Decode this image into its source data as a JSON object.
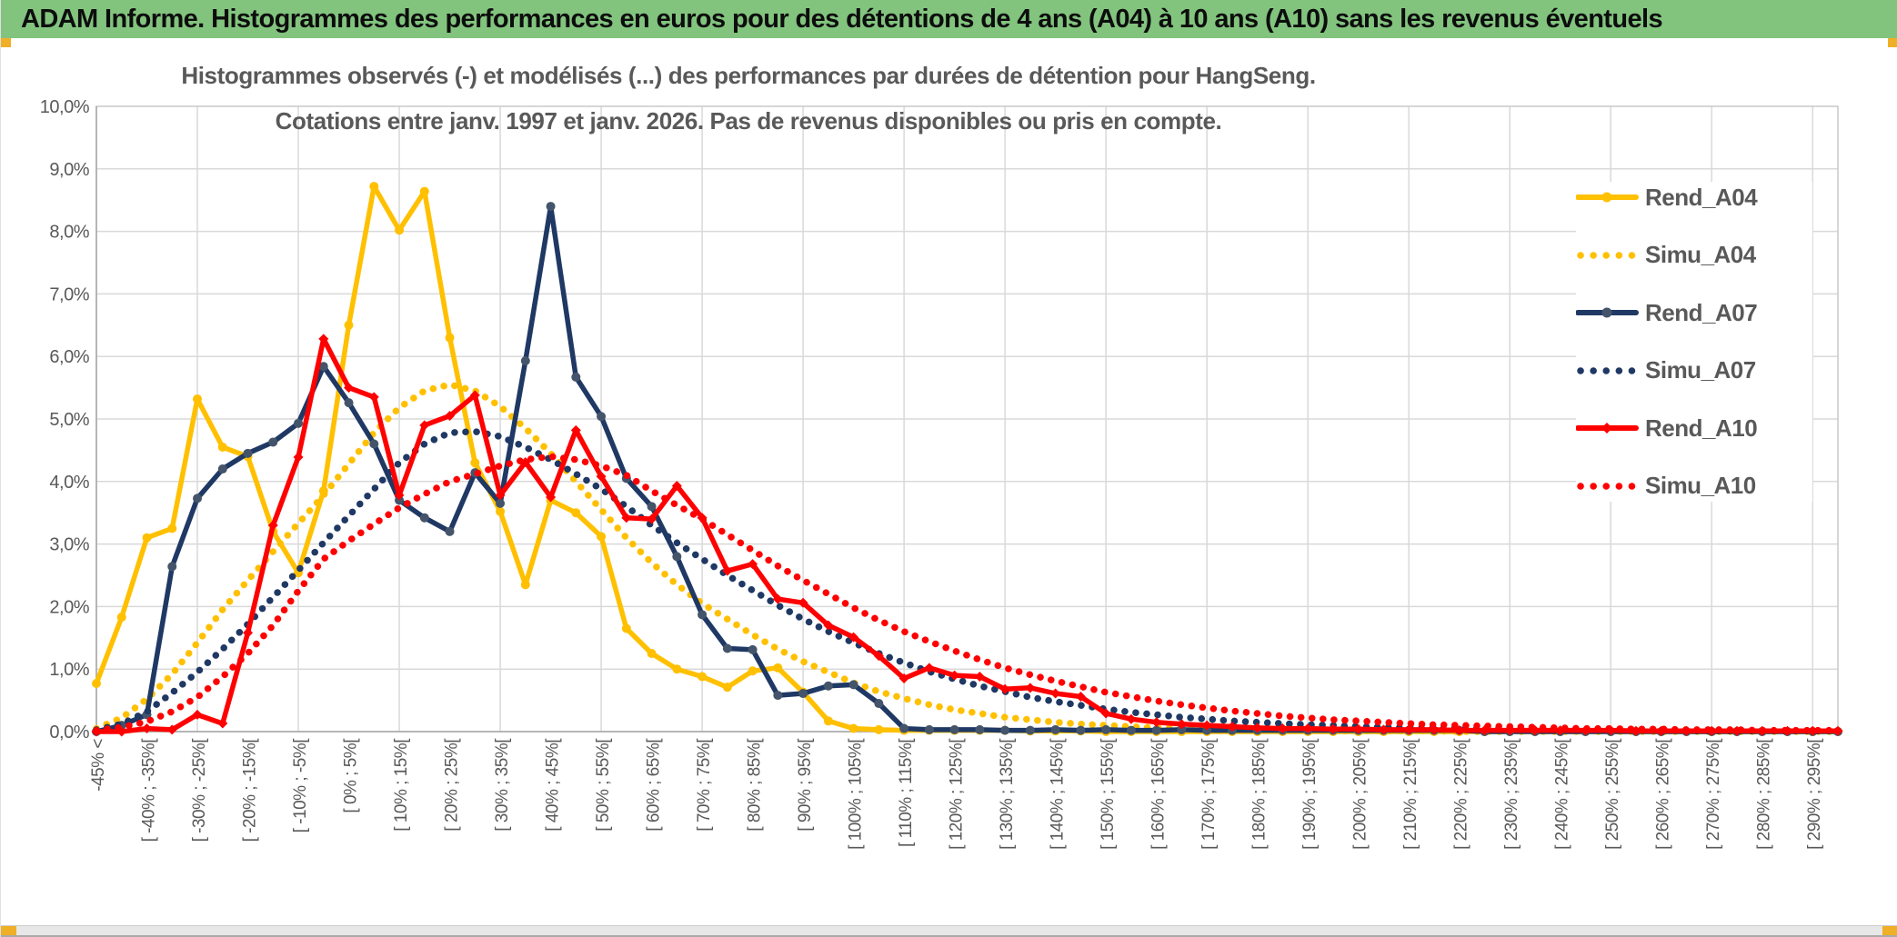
{
  "window": {
    "title": "ADAM Informe. Histogrammes des performances en euros pour des détentions de 4 ans (A04) à 10 ans (A10) sans les revenus éventuels"
  },
  "colors": {
    "titlebar_green": "#82c47e",
    "accent_gold": "#efaf26",
    "grid": "#d9d9d9",
    "axis": "#a6a6a6",
    "text_grey": "#595959",
    "series_yellow": "#FFC000",
    "series_navy": "#1F3864",
    "navy_marker": "#44546A",
    "series_red": "#FF0000"
  },
  "legend": {
    "entries": [
      {
        "label": "Rend_A04",
        "color": "#FFC000",
        "style": "solid",
        "marker": "circle",
        "marker_color": "#FFC000"
      },
      {
        "label": "Simu_A04",
        "color": "#FFC000",
        "style": "dotted"
      },
      {
        "label": "Rend_A07",
        "color": "#1F3864",
        "style": "solid",
        "marker": "circle",
        "marker_color": "#44546A"
      },
      {
        "label": "Simu_A07",
        "color": "#1F3864",
        "style": "dotted"
      },
      {
        "label": "Rend_A10",
        "color": "#FF0000",
        "style": "solid",
        "marker": "diamond",
        "marker_color": "#FF0000"
      },
      {
        "label": "Simu_A10",
        "color": "#FF0000",
        "style": "dotted"
      }
    ]
  },
  "chart_data": {
    "type": "line",
    "title_line1": "Histogrammes observés (-) et modélisés (...) des performances par durées de détention pour HangSeng.",
    "title_line2": "Cotations entre janv. 1997 et janv. 2026. Pas de revenus disponibles ou pris en compte.",
    "ylabel": "",
    "xlabel": "",
    "ylim": [
      0,
      10
    ],
    "y_tick_labels": [
      "10,0%",
      "9,0%",
      "8,0%",
      "7,0%",
      "6,0%",
      "5,0%",
      "4,0%",
      "3,0%",
      "2,0%",
      "1,0%",
      "0,0%"
    ],
    "x_count": 70,
    "x_label_every": 2,
    "x_tick_labels": [
      "-45% <",
      "[ -40% ; -35%[",
      "[ -30% ; -25%[",
      "[ -20% ; -15%[",
      "[ -10% ; -5%[",
      "[ 0% ; 5%[",
      "[ 10% ; 15%[",
      "[ 20% ; 25%[",
      "[ 30% ; 35%[",
      "[ 40% ; 45%[",
      "[ 50% ; 55%[",
      "[ 60% ; 65%[",
      "[ 70% ; 75%[",
      "[ 80% ; 85%[",
      "[ 90% ; 95%[",
      "[ 100% ; 105%[",
      "[ 110% ; 115%[",
      "[ 120% ; 125%[",
      "[ 130% ; 135%[",
      "[ 140% ; 145%[",
      "[ 150% ; 155%[",
      "[ 160% ; 165%[",
      "[ 170% ; 175%[",
      "[ 180% ; 185%[",
      "[ 190% ; 195%[",
      "[ 200% ; 205%[",
      "[ 210% ; 215%[",
      "[ 220% ; 225%[",
      "[ 230% ; 235%[",
      "[ 240% ; 245%[",
      "[ 250% ; 255%[",
      "[ 260% ; 265%[",
      "[ 270% ; 275%[",
      "[ 280% ; 285%[",
      "[ 290% ; 295%["
    ],
    "grid": true,
    "legend_position": "right-overlay",
    "series": [
      {
        "name": "Rend_A04",
        "color": "#FFC000",
        "style": "solid",
        "marker": "circle",
        "marker_color": "#FFC000",
        "values": [
          0.77,
          1.83,
          3.1,
          3.25,
          5.32,
          4.55,
          4.4,
          3.2,
          2.54,
          3.85,
          6.5,
          8.72,
          8.02,
          8.64,
          6.3,
          4.3,
          3.52,
          2.35,
          3.7,
          3.5,
          3.12,
          1.65,
          1.25,
          1.0,
          0.88,
          0.71,
          0.97,
          1.02,
          0.63,
          0.17,
          0.05,
          0.03,
          0.02,
          0.02,
          0.02,
          0.02,
          0.02,
          0.01,
          0.01,
          0.01,
          0,
          0,
          0,
          0,
          0,
          0,
          0,
          0,
          0,
          0,
          0,
          0,
          0,
          0,
          0,
          0,
          0,
          0,
          0,
          0,
          0,
          0,
          0,
          0,
          0,
          0,
          0,
          0,
          0,
          0
        ]
      },
      {
        "name": "Simu_A04",
        "color": "#FFC000",
        "style": "dotted",
        "values": [
          0.05,
          0.22,
          0.52,
          0.92,
          1.42,
          1.95,
          2.42,
          2.88,
          3.33,
          3.78,
          4.28,
          4.78,
          5.18,
          5.45,
          5.55,
          5.45,
          5.2,
          4.85,
          4.45,
          4.0,
          3.55,
          3.1,
          2.7,
          2.35,
          2.05,
          1.8,
          1.55,
          1.32,
          1.12,
          0.95,
          0.78,
          0.64,
          0.53,
          0.43,
          0.35,
          0.29,
          0.23,
          0.19,
          0.15,
          0.12,
          0.1,
          0.08,
          0.06,
          0.05,
          0.04,
          0.03,
          0.03,
          0.02,
          0.02,
          0.01,
          0.01,
          0.01,
          0.01,
          0.01,
          0,
          0,
          0,
          0,
          0,
          0,
          0,
          0,
          0,
          0,
          0,
          0,
          0,
          0,
          0,
          0
        ]
      },
      {
        "name": "Rend_A07",
        "color": "#1F3864",
        "style": "solid",
        "marker": "circle",
        "marker_color": "#44546A",
        "values": [
          0,
          0.1,
          0.27,
          2.64,
          3.73,
          4.2,
          4.45,
          4.63,
          4.93,
          5.84,
          5.26,
          4.6,
          3.7,
          3.42,
          3.2,
          4.14,
          3.65,
          5.93,
          8.4,
          5.67,
          5.04,
          4.05,
          3.6,
          2.8,
          1.87,
          1.33,
          1.31,
          0.58,
          0.61,
          0.73,
          0.75,
          0.45,
          0.05,
          0.03,
          0.03,
          0.03,
          0.02,
          0.02,
          0.03,
          0.02,
          0.03,
          0.02,
          0.02,
          0.03,
          0.02,
          0.02,
          0.02,
          0.02,
          0.02,
          0.02,
          0.02,
          0.02,
          0.02,
          0.02,
          0.02,
          0,
          0,
          0,
          0,
          0,
          0,
          0,
          0,
          0,
          0,
          0,
          0,
          0,
          0,
          0
        ]
      },
      {
        "name": "Simu_A07",
        "color": "#1F3864",
        "style": "dotted",
        "values": [
          0.03,
          0.12,
          0.32,
          0.62,
          0.95,
          1.32,
          1.72,
          2.15,
          2.58,
          3.02,
          3.45,
          3.88,
          4.3,
          4.6,
          4.78,
          4.8,
          4.72,
          4.55,
          4.35,
          4.12,
          3.88,
          3.6,
          3.3,
          3.02,
          2.76,
          2.5,
          2.26,
          2.02,
          1.8,
          1.6,
          1.42,
          1.25,
          1.1,
          0.96,
          0.84,
          0.73,
          0.64,
          0.55,
          0.48,
          0.42,
          0.36,
          0.31,
          0.27,
          0.23,
          0.2,
          0.17,
          0.15,
          0.13,
          0.11,
          0.1,
          0.08,
          0.07,
          0.06,
          0.05,
          0.05,
          0.04,
          0.04,
          0.03,
          0.03,
          0.02,
          0.02,
          0.02,
          0.02,
          0.01,
          0.01,
          0.01,
          0.01,
          0.01,
          0.01,
          0.01
        ]
      },
      {
        "name": "Rend_A10",
        "color": "#FF0000",
        "style": "solid",
        "marker": "diamond",
        "marker_color": "#FF0000",
        "values": [
          0,
          0,
          0.05,
          0.03,
          0.27,
          0.13,
          1.58,
          3.3,
          4.39,
          6.28,
          5.5,
          5.35,
          3.78,
          4.9,
          5.05,
          5.38,
          3.78,
          4.31,
          3.75,
          4.82,
          4.08,
          3.42,
          3.4,
          3.93,
          3.42,
          2.57,
          2.68,
          2.12,
          2.06,
          1.7,
          1.51,
          1.21,
          0.85,
          1.02,
          0.9,
          0.88,
          0.68,
          0.7,
          0.61,
          0.56,
          0.29,
          0.2,
          0.15,
          0.12,
          0.1,
          0.08,
          0.06,
          0.05,
          0.05,
          0.04,
          0.04,
          0.03,
          0.03,
          0.03,
          0.02,
          0.02,
          0.02,
          0.02,
          0.02,
          0.02,
          0.02,
          0.01,
          0.01,
          0.01,
          0.01,
          0.01,
          0.01,
          0.01,
          0.01,
          0.01
        ]
      },
      {
        "name": "Simu_A10",
        "color": "#FF0000",
        "style": "dotted",
        "values": [
          0.02,
          0.07,
          0.16,
          0.32,
          0.55,
          0.88,
          1.25,
          1.7,
          2.25,
          2.76,
          3.05,
          3.32,
          3.58,
          3.8,
          4.0,
          4.12,
          4.25,
          4.35,
          4.4,
          4.35,
          4.25,
          4.1,
          3.85,
          3.62,
          3.4,
          3.15,
          2.9,
          2.65,
          2.42,
          2.2,
          1.98,
          1.78,
          1.6,
          1.44,
          1.29,
          1.15,
          1.02,
          0.91,
          0.81,
          0.72,
          0.63,
          0.56,
          0.49,
          0.43,
          0.38,
          0.33,
          0.29,
          0.25,
          0.22,
          0.19,
          0.17,
          0.15,
          0.13,
          0.11,
          0.1,
          0.09,
          0.08,
          0.07,
          0.06,
          0.05,
          0.05,
          0.04,
          0.04,
          0.03,
          0.03,
          0.03,
          0.02,
          0.02,
          0.02,
          0.02
        ]
      }
    ]
  }
}
